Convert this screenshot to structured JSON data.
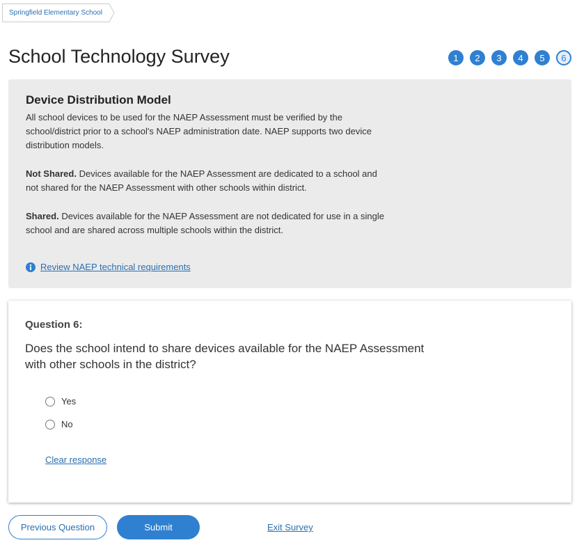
{
  "breadcrumb": {
    "label": "Springfield Elementary School"
  },
  "header": {
    "title": "School Technology Survey",
    "steps": [
      "1",
      "2",
      "3",
      "4",
      "5",
      "6"
    ]
  },
  "info_panel": {
    "heading": "Device Distribution Model",
    "intro": "All school devices to be used for the NAEP Assessment must be verified by the school/district prior to a school's NAEP administration date. NAEP supports two device distribution models.",
    "models": [
      {
        "term": "Not Shared.",
        "text": "Devices available for the NAEP Assessment are dedicated to a school and not shared for the NAEP Assessment with other schools within district."
      },
      {
        "term": "Shared.",
        "text": "Devices available for the NAEP Assessment are not dedicated for use in a single school and are shared across multiple schools within the district."
      }
    ],
    "link": "Review NAEP technical requirements"
  },
  "question": {
    "label": "Question 6:",
    "text": "Does the school intend to share devices available for the NAEP Assessment with other schools in the district?",
    "options": [
      "Yes",
      "No"
    ],
    "clear": "Clear response"
  },
  "footer": {
    "previous": "Previous Question",
    "submit": "Submit",
    "exit": "Exit Survey"
  }
}
